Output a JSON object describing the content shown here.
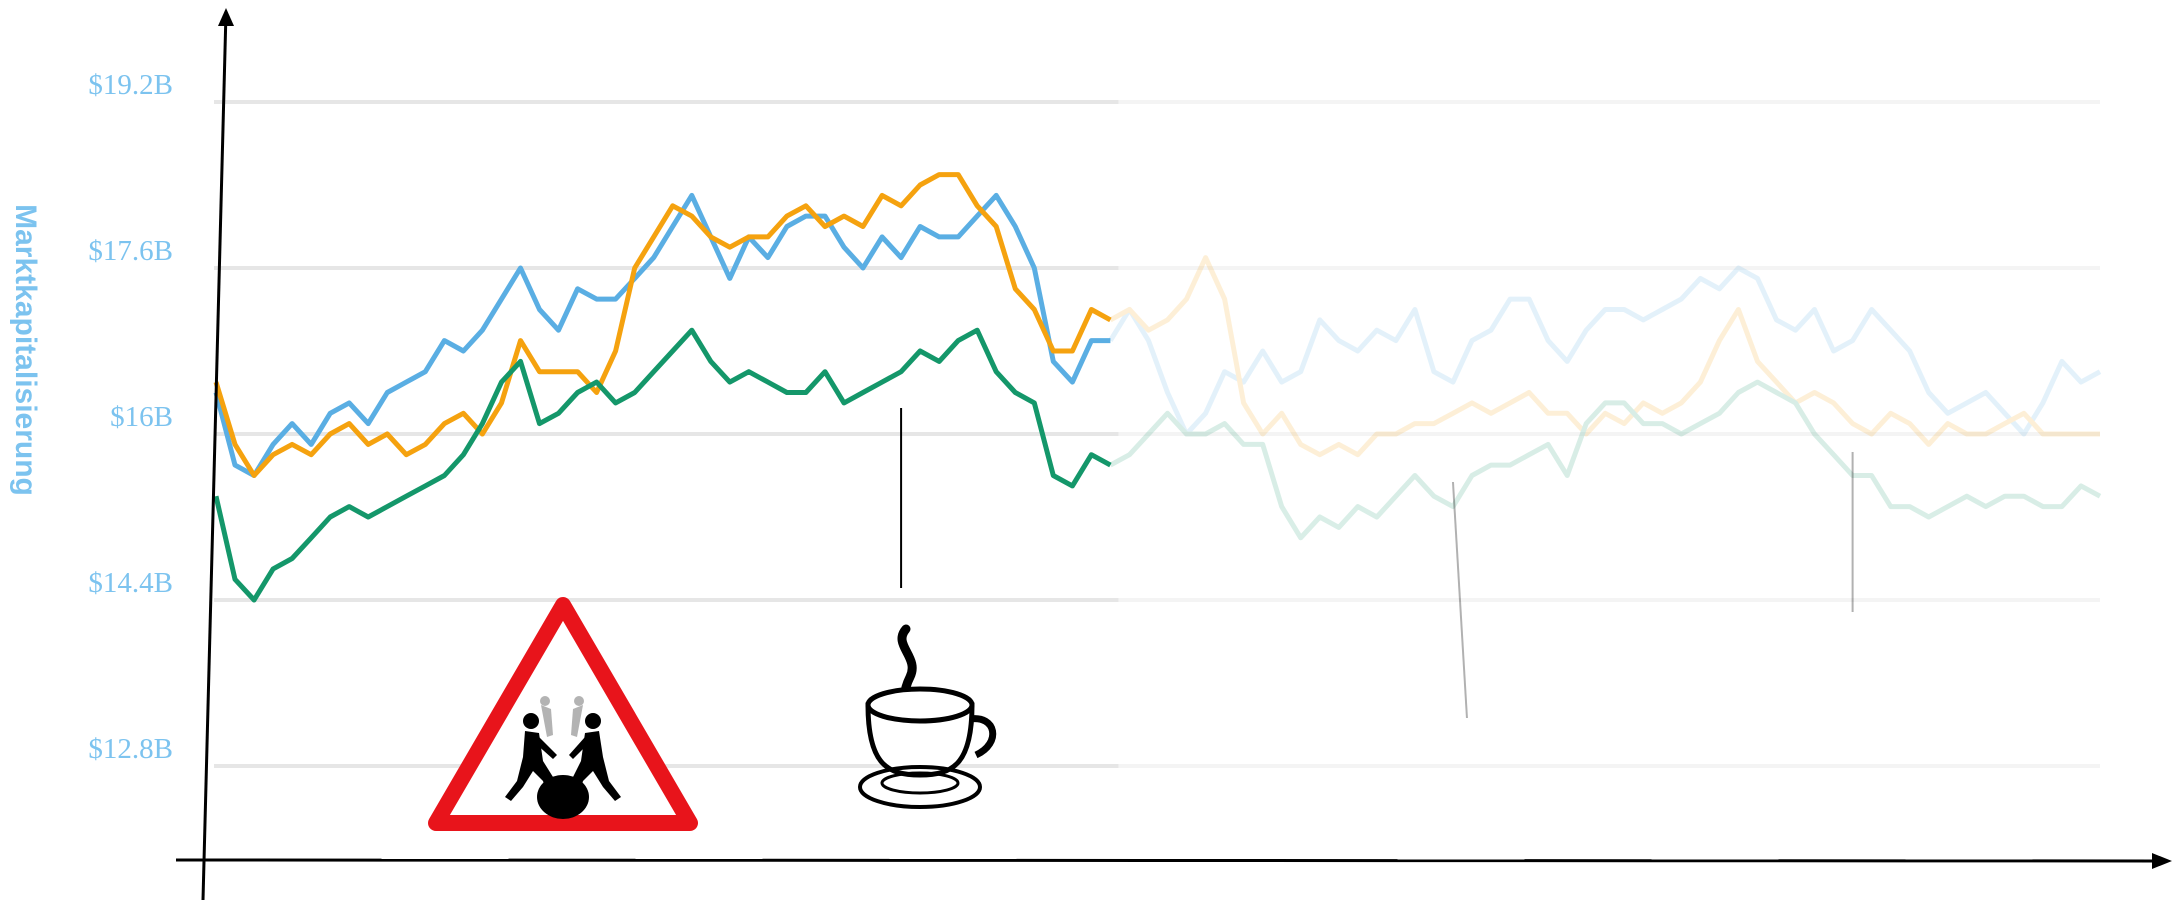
{
  "chart_data": {
    "type": "line",
    "title": "",
    "xlabel": "",
    "ylabel": "Marktkapitalisierung",
    "ylim": [
      11.5,
      20.0
    ],
    "y_ticks": [
      "$12.8B",
      "$14.4B",
      "$16B",
      "$17.6B",
      "$19.2B"
    ],
    "y_tick_values": [
      12.8,
      14.4,
      16.0,
      17.6,
      19.2
    ],
    "grid": true,
    "legend": "none",
    "x_count": 100,
    "visible_points": 48,
    "faded_from_index": 48,
    "series": [
      {
        "color": "#5aaee3",
        "values": [
          16.4,
          15.7,
          15.6,
          15.9,
          16.1,
          15.9,
          16.2,
          16.3,
          16.1,
          16.4,
          16.5,
          16.6,
          16.9,
          16.8,
          17.0,
          17.3,
          17.6,
          17.2,
          17.0,
          17.4,
          17.3,
          17.3,
          17.5,
          17.7,
          18.0,
          18.3,
          17.9,
          17.5,
          17.9,
          17.7,
          18.0,
          18.1,
          18.1,
          17.8,
          17.6,
          17.9,
          17.7,
          18.0,
          17.9,
          17.9,
          18.1,
          18.3,
          18.0,
          17.6,
          16.7,
          16.5,
          16.9,
          16.9,
          17.2,
          16.9,
          16.4,
          16.0,
          16.2,
          16.6,
          16.5,
          16.8,
          16.5,
          16.6,
          17.1,
          16.9,
          16.8,
          17.0,
          16.9,
          17.2,
          16.6,
          16.5,
          16.9,
          17.0,
          17.3,
          17.3,
          16.9,
          16.7,
          17.0,
          17.2,
          17.2,
          17.1,
          17.2,
          17.3,
          17.5,
          17.4,
          17.6,
          17.5,
          17.1,
          17.0,
          17.2,
          16.8,
          16.9,
          17.2,
          17.0,
          16.8,
          16.4,
          16.2,
          16.3,
          16.4,
          16.2,
          16.0,
          16.3,
          16.7,
          16.5,
          16.6
        ]
      },
      {
        "color": "#f5a20f",
        "values": [
          16.5,
          15.9,
          15.6,
          15.8,
          15.9,
          15.8,
          16.0,
          16.1,
          15.9,
          16.0,
          15.8,
          15.9,
          16.1,
          16.2,
          16.0,
          16.3,
          16.9,
          16.6,
          16.6,
          16.6,
          16.4,
          16.8,
          17.6,
          17.9,
          18.2,
          18.1,
          17.9,
          17.8,
          17.9,
          17.9,
          18.1,
          18.2,
          18.0,
          18.1,
          18.0,
          18.3,
          18.2,
          18.4,
          18.5,
          18.5,
          18.2,
          18.0,
          17.4,
          17.2,
          16.8,
          16.8,
          17.2,
          17.1,
          17.2,
          17.0,
          17.1,
          17.3,
          17.7,
          17.3,
          16.3,
          16.0,
          16.2,
          15.9,
          15.8,
          15.9,
          15.8,
          16.0,
          16.0,
          16.1,
          16.1,
          16.2,
          16.3,
          16.2,
          16.3,
          16.4,
          16.2,
          16.2,
          16.0,
          16.2,
          16.1,
          16.3,
          16.2,
          16.3,
          16.5,
          16.9,
          17.2,
          16.7,
          16.5,
          16.3,
          16.4,
          16.3,
          16.1,
          16.0,
          16.2,
          16.1,
          15.9,
          16.1,
          16.0,
          16.0,
          16.1,
          16.2,
          16.0,
          16.0,
          16.0,
          16.0
        ]
      },
      {
        "color": "#14976a",
        "values": [
          15.4,
          14.6,
          14.4,
          14.7,
          14.8,
          15.0,
          15.2,
          15.3,
          15.2,
          15.3,
          15.4,
          15.5,
          15.6,
          15.8,
          16.1,
          16.5,
          16.7,
          16.1,
          16.2,
          16.4,
          16.5,
          16.3,
          16.4,
          16.6,
          16.8,
          17.0,
          16.7,
          16.5,
          16.6,
          16.5,
          16.4,
          16.4,
          16.6,
          16.3,
          16.4,
          16.5,
          16.6,
          16.8,
          16.7,
          16.9,
          17.0,
          16.6,
          16.4,
          16.3,
          15.6,
          15.5,
          15.8,
          15.7,
          15.8,
          16.0,
          16.2,
          16.0,
          16.0,
          16.1,
          15.9,
          15.9,
          15.3,
          15.0,
          15.2,
          15.1,
          15.3,
          15.2,
          15.4,
          15.6,
          15.4,
          15.3,
          15.6,
          15.7,
          15.7,
          15.8,
          15.9,
          15.6,
          16.1,
          16.3,
          16.3,
          16.1,
          16.1,
          16.0,
          16.1,
          16.2,
          16.4,
          16.5,
          16.4,
          16.3,
          16.0,
          15.8,
          15.6,
          15.6,
          15.3,
          15.3,
          15.2,
          15.3,
          15.4,
          15.3,
          15.4,
          15.4,
          15.3,
          15.3,
          15.5,
          15.4
        ]
      }
    ],
    "annotations": [
      {
        "icon": "road-works-sign-icon",
        "x_index": 16
      },
      {
        "icon": "coffee-cup-icon",
        "x_index": 36
      },
      {
        "icon": "annotation-line",
        "x_index": 65
      },
      {
        "icon": "annotation-line",
        "x_index": 86
      }
    ]
  },
  "colors": {
    "axis": "#000000",
    "grid": "#e6e6e6",
    "tick_text": "#7cc3ef",
    "sign_red": "#e8141b"
  }
}
